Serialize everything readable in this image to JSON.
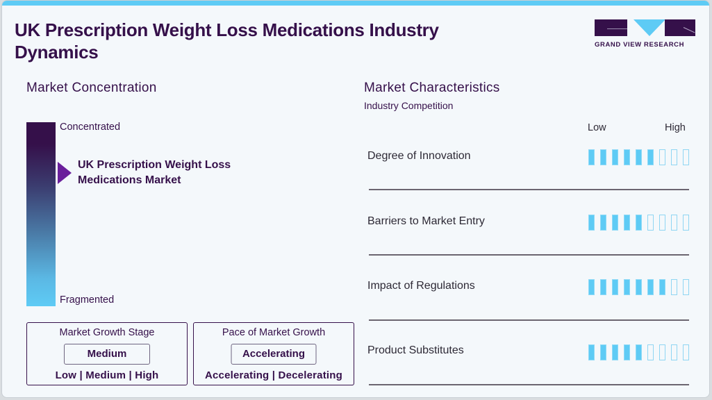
{
  "header": {
    "title": "UK Prescription Weight Loss Medications Industry Dynamics",
    "logo_text": "GRAND VIEW RESEARCH"
  },
  "colors": {
    "brand_dark": "#35104a",
    "accent_blue": "#5ecbf5",
    "marker_purple": "#6a1f9b"
  },
  "concentration": {
    "title": "Market Concentration",
    "top_label": "Concentrated",
    "bottom_label": "Fragmented",
    "marker_label": "UK Prescription Weight Loss Medications Market",
    "marker_position": "upper (approx. 25% from top)"
  },
  "growth_stage": {
    "title": "Market Growth Stage",
    "value": "Medium",
    "options": "Low | Medium | High"
  },
  "growth_pace": {
    "title": "Pace of Market Growth",
    "value": "Accelerating",
    "options": "Accelerating | Decelerating"
  },
  "characteristics": {
    "title": "Market Characteristics",
    "subtitle": "Industry Competition",
    "scale_low": "Low",
    "scale_high": "High",
    "max_level": 9,
    "rows": [
      {
        "label": "Degree of Innovation",
        "level": 6
      },
      {
        "label": "Barriers to Market Entry",
        "level": 5
      },
      {
        "label": "Impact of Regulations",
        "level": 7
      },
      {
        "label": "Product Substitutes",
        "level": 5
      }
    ]
  },
  "chart_data": {
    "type": "bar",
    "title": "Market Characteristics - Industry Competition",
    "categories": [
      "Degree of Innovation",
      "Barriers to Market Entry",
      "Impact of Regulations",
      "Product Substitutes"
    ],
    "values": [
      6,
      5,
      7,
      5
    ],
    "xlabel": "",
    "ylabel": "Level (Low to High)",
    "ylim": [
      0,
      9
    ],
    "orientation": "horizontal segmented rating"
  }
}
